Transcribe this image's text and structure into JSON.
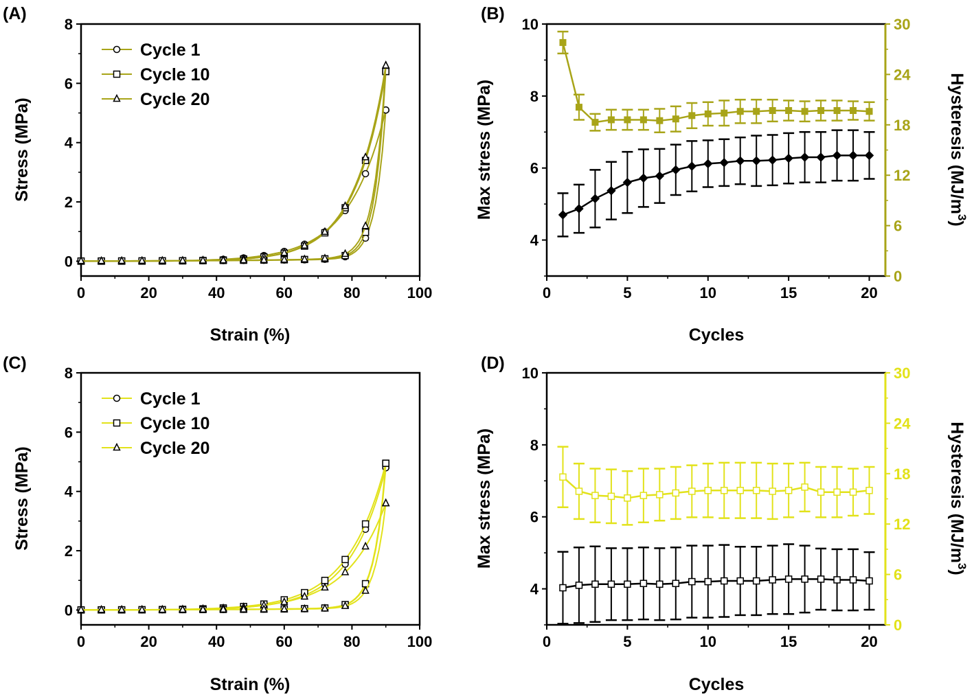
{
  "colors": {
    "olive": "#a8a418",
    "yellow": "#e2e21a",
    "black": "#000000"
  },
  "chart_data": [
    {
      "id": "A",
      "panel_label": "(A)",
      "type": "line",
      "xlabel": "Strain (%)",
      "ylabel": "Stress (MPa)",
      "xlim": [
        0,
        100
      ],
      "ylim": [
        -0.5,
        8
      ],
      "xticks": [
        "0",
        "20",
        "40",
        "60",
        "80",
        "100"
      ],
      "yticks": [
        "0",
        "2",
        "4",
        "6",
        "8"
      ],
      "legend_position": "top-left",
      "grid": false,
      "series": [
        {
          "name": "Cycle 1",
          "marker": "circle",
          "load_peak": 5.1,
          "unload_end": 1.4,
          "load_shape": 8.2,
          "unload_shape": 11
        },
        {
          "name": "Cycle 10",
          "marker": "square",
          "load_peak": 6.4,
          "unload_end": 1.6,
          "load_shape": 9.5,
          "unload_shape": 11
        },
        {
          "name": "Cycle 20",
          "marker": "triangle",
          "load_peak": 6.6,
          "unload_end": 2.0,
          "load_shape": 9.5,
          "unload_shape": 10
        }
      ]
    },
    {
      "id": "B",
      "panel_label": "(B)",
      "type": "line",
      "xlabel": "Cycles",
      "ylabel": "Max stress (MPa)",
      "y2label": "Hysteresis (MJ/m3)",
      "xlim": [
        0,
        21
      ],
      "ylim": [
        3,
        10
      ],
      "y2lim": [
        0,
        30
      ],
      "xticks": [
        "0",
        "5",
        "10",
        "15",
        "20"
      ],
      "yticks": [
        "4",
        "6",
        "8",
        "10"
      ],
      "y2ticks": [
        "0",
        "6",
        "12",
        "18",
        "24",
        "30"
      ],
      "x": [
        1,
        2,
        3,
        4,
        5,
        6,
        7,
        8,
        9,
        10,
        11,
        12,
        13,
        14,
        15,
        16,
        17,
        18,
        19,
        20
      ],
      "series": [
        {
          "axis": "left",
          "marker": "diamond",
          "values": [
            4.7,
            4.87,
            5.15,
            5.37,
            5.6,
            5.72,
            5.78,
            5.95,
            6.05,
            6.12,
            6.15,
            6.2,
            6.2,
            6.22,
            6.27,
            6.3,
            6.3,
            6.35,
            6.35,
            6.35
          ],
          "errors": [
            0.6,
            0.67,
            0.8,
            0.8,
            0.85,
            0.8,
            0.75,
            0.7,
            0.7,
            0.65,
            0.65,
            0.65,
            0.7,
            0.7,
            0.7,
            0.7,
            0.7,
            0.7,
            0.7,
            0.65
          ]
        },
        {
          "axis": "right",
          "marker": "square-filled",
          "values": [
            27.8,
            20.1,
            18.3,
            18.6,
            18.6,
            18.6,
            18.5,
            18.7,
            19.1,
            19.3,
            19.4,
            19.6,
            19.6,
            19.7,
            19.7,
            19.6,
            19.7,
            19.7,
            19.7,
            19.6
          ],
          "errors": [
            1.3,
            1.5,
            1.0,
            1.2,
            1.2,
            1.2,
            1.4,
            1.5,
            1.5,
            1.4,
            1.5,
            1.4,
            1.4,
            1.3,
            1.2,
            1.2,
            1.2,
            1.2,
            1.1,
            1.1
          ]
        }
      ]
    },
    {
      "id": "C",
      "panel_label": "(C)",
      "type": "line",
      "xlabel": "Strain (%)",
      "ylabel": "Stress (MPa)",
      "xlim": [
        0,
        100
      ],
      "ylim": [
        -0.5,
        8
      ],
      "xticks": [
        "0",
        "20",
        "40",
        "60",
        "80",
        "100"
      ],
      "yticks": [
        "0",
        "2",
        "4",
        "6",
        "8"
      ],
      "legend_position": "top-left",
      "grid": false,
      "series": [
        {
          "name": "Cycle 1",
          "marker": "circle",
          "load_peak": 4.8,
          "unload_end": 1.6,
          "load_shape": 8.5,
          "unload_shape": 10
        },
        {
          "name": "Cycle 10",
          "marker": "square",
          "load_peak": 4.95,
          "unload_end": 1.5,
          "load_shape": 8.0,
          "unload_shape": 10
        },
        {
          "name": "Cycle 20",
          "marker": "triangle",
          "load_peak": 3.6,
          "unload_end": 1.1,
          "load_shape": 7.8,
          "unload_shape": 10
        }
      ]
    },
    {
      "id": "D",
      "panel_label": "(D)",
      "type": "line",
      "xlabel": "Cycles",
      "ylabel": "Max stress (MPa)",
      "y2label": "Hysteresis (MJ/m3)",
      "xlim": [
        0,
        21
      ],
      "ylim": [
        3,
        10
      ],
      "y2lim": [
        0,
        30
      ],
      "xticks": [
        "0",
        "5",
        "10",
        "15",
        "20"
      ],
      "yticks": [
        "4",
        "6",
        "8",
        "10"
      ],
      "y2ticks": [
        "0",
        "6",
        "12",
        "18",
        "24",
        "30"
      ],
      "x": [
        1,
        2,
        3,
        4,
        5,
        6,
        7,
        8,
        9,
        10,
        11,
        12,
        13,
        14,
        15,
        16,
        17,
        18,
        19,
        20
      ],
      "series": [
        {
          "axis": "left",
          "marker": "square-open",
          "values": [
            4.03,
            4.1,
            4.13,
            4.13,
            4.13,
            4.15,
            4.13,
            4.15,
            4.2,
            4.2,
            4.22,
            4.22,
            4.22,
            4.25,
            4.27,
            4.27,
            4.27,
            4.25,
            4.25,
            4.22
          ],
          "errors": [
            1.0,
            1.05,
            1.05,
            1.0,
            1.0,
            1.0,
            1.0,
            1.0,
            1.0,
            1.0,
            1.0,
            0.95,
            0.95,
            0.95,
            0.97,
            0.93,
            0.85,
            0.85,
            0.85,
            0.8
          ]
        },
        {
          "axis": "right",
          "marker": "square-open",
          "values": [
            17.6,
            15.9,
            15.4,
            15.3,
            15.1,
            15.4,
            15.5,
            15.7,
            15.9,
            16.0,
            16.0,
            16.0,
            16.0,
            15.9,
            16.0,
            16.4,
            15.8,
            15.8,
            15.8,
            16.0
          ],
          "errors": [
            3.6,
            3.3,
            3.2,
            3.2,
            3.2,
            3.2,
            3.1,
            3.1,
            3.1,
            3.2,
            3.3,
            3.3,
            3.3,
            3.3,
            3.2,
            2.9,
            3.0,
            3.0,
            2.8,
            2.8
          ]
        }
      ]
    }
  ]
}
